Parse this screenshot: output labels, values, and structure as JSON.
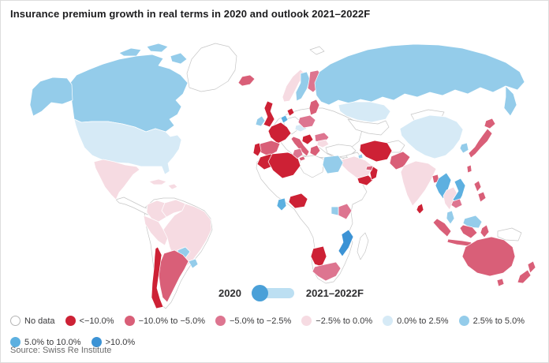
{
  "title": "Insurance premium growth in real terms in 2020 and outlook 2021–2022F",
  "source": "Source: Swiss Re Institute",
  "period_legend": {
    "left_label": "2020",
    "right_label": "2021–2022F",
    "circle_color": "#4aa0d8",
    "tail_color": "#bcdff2"
  },
  "legend": {
    "items": [
      {
        "key": "no_data",
        "label": "No data",
        "color": "#ffffff",
        "stroke": "#b5b5b5"
      },
      {
        "key": "lt_m10",
        "label": "<−10.0%",
        "color": "#cd2135"
      },
      {
        "key": "m10_m5",
        "label": "−10.0% to −5.0%",
        "color": "#d95f78"
      },
      {
        "key": "m5_m25",
        "label": "−5.0% to −2.5%",
        "color": "#dd7590"
      },
      {
        "key": "m25_0",
        "label": "−2.5% to 0.0%",
        "color": "#f6dbe2"
      },
      {
        "key": "p0_p25",
        "label": "0.0% to 2.5%",
        "color": "#d6eaf6"
      },
      {
        "key": "p25_p5",
        "label": "2.5% to 5.0%",
        "color": "#94ccea"
      },
      {
        "key": "p5_p10",
        "label": "5.0% to 10.0%",
        "color": "#5db0e0"
      },
      {
        "key": "gt10",
        "label": ">10.0%",
        "color": "#3c93d5"
      }
    ]
  },
  "chart_data": {
    "type": "choropleth_map",
    "title": "Insurance premium growth in real terms in 2020 and outlook 2021–2022F",
    "unit": "real premium growth, %",
    "categories": [
      "No data",
      "<−10.0%",
      "−10.0% to −5.0%",
      "−5.0% to −2.5%",
      "−2.5% to 0.0%",
      "0.0% to 2.5%",
      "2.5% to 5.0%",
      "5.0% to 10.0%",
      ">10.0%"
    ],
    "regions": {
      "south-america-mainland": "no_data",
      "europe-mainland": "no_data",
      "africa-mainland": "no_data",
      "central-america": "no_data",
      "greenland": "no_data",
      "svalbard": "no_data",
      "bolivia": "no_data",
      "germany": "no_data",
      "turkey": "no_data",
      "iraq": "no_data",
      "afghanistan": "no_data",
      "central-asia": "no_data",
      "mongolia": "no_data",
      "libya": "no_data",
      "madagascar": "no_data",
      "new-guinea": "no_data",
      "canada": "p25_p5",
      "alaska": "p25_p5",
      "usa": "p0_p25",
      "mexico": "m25_0",
      "cuba": "m25_0",
      "hispaniola": "m25_0",
      "colombia": "m25_0",
      "venezuela": "m25_0",
      "ecuador-peru": "m25_0",
      "brazil": "m25_0",
      "paraguay": "p25_p5",
      "uruguay": "p25_p5",
      "argentina": "m10_m5",
      "chile": "lt_m10",
      "iceland": "m10_m5",
      "uk": "lt_m10",
      "ireland": "p25_p5",
      "norway": "m25_0",
      "sweden": "p25_p5",
      "finland": "m5_m25",
      "denmark": "lt_m10",
      "benelux": "p5_p10",
      "france": "lt_m10",
      "spain": "m10_m5",
      "portugal": "lt_m10",
      "italy": "m10_m5",
      "czech-austria": "p0_p25",
      "poland": "m5_m25",
      "baltics": "m10_m5",
      "romania": "m5_m25",
      "croatia-balkans": "lt_m10",
      "greece": "m10_m5",
      "bulgaria": "m25_0",
      "russia": "p25_p5",
      "kazakhstan": "p0_p25",
      "iran": "lt_m10",
      "saudi-arabia": "m25_0",
      "yemen": "lt_m10",
      "oman": "lt_m10",
      "uae": "m10_m5",
      "kuwait": "p25_p5",
      "morocco": "lt_m10",
      "algeria": "lt_m10",
      "tunisia": "m5_m25",
      "egypt": "p25_p5",
      "nigeria": "lt_m10",
      "ghana": "p5_p10",
      "kenya": "m5_m25",
      "uganda": "p25_p5",
      "mozambique": "gt10",
      "namibia": "lt_m10",
      "south-africa": "m5_m25",
      "pakistan": "m10_m5",
      "india": "m25_0",
      "sri-lanka": "lt_m10",
      "bangladesh": "m10_m5",
      "china": "p0_p25",
      "south-korea": "p25_p5",
      "japan": "m10_m5",
      "taiwan": "m10_m5",
      "myanmar": "p5_p10",
      "thailand": "m25_0",
      "vietnam": "p5_p10",
      "cambodia": "m5_m25",
      "malaysia": "p25_p5",
      "borneo-malaysia": "p25_p5",
      "kalimantan": "m10_m5",
      "sumatra": "m10_m5",
      "java": "m10_m5",
      "sulawesi": "m10_m5",
      "philippines": "m10_m5",
      "australia": "m10_m5",
      "tasmania": "m10_m5",
      "new-zealand": "m10_m5"
    }
  }
}
